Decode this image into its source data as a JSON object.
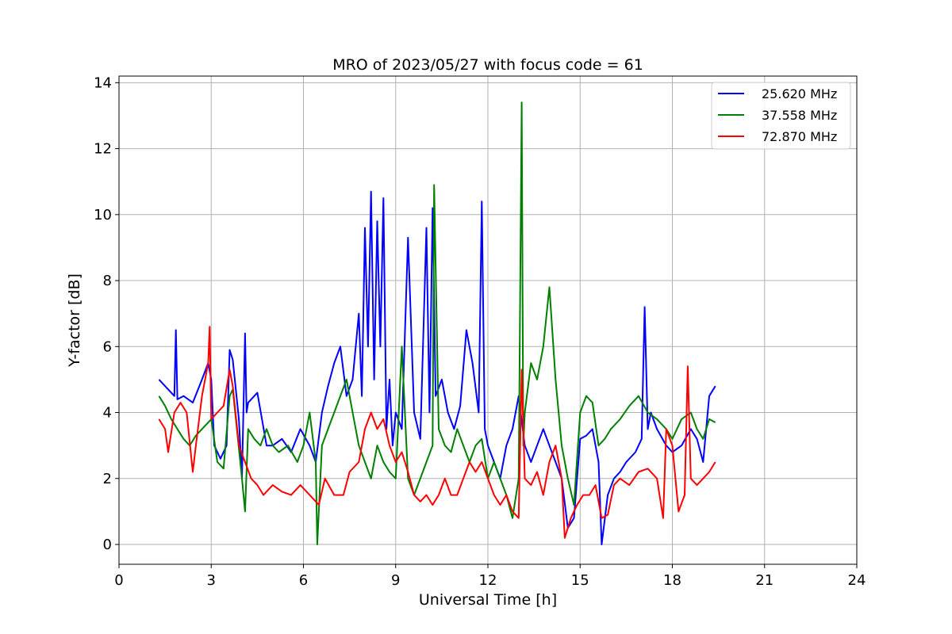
{
  "chart_data": {
    "type": "line",
    "title": "MRO of 2023/05/27 with focus code = 61",
    "xlabel": "Universal Time [h]",
    "ylabel": "Y-factor [dB]",
    "xlim": [
      0,
      24
    ],
    "ylim": [
      -0.6,
      14.2
    ],
    "xticks": [
      0,
      3,
      6,
      9,
      12,
      15,
      18,
      21,
      24
    ],
    "yticks": [
      0,
      2,
      4,
      6,
      8,
      10,
      12,
      14
    ],
    "grid": true,
    "legend_position": "top-right",
    "series": [
      {
        "name": "25.620 MHz",
        "color": "#0000ff",
        "x": [
          1.3,
          1.5,
          1.7,
          1.8,
          1.85,
          1.9,
          2.1,
          2.4,
          2.7,
          2.9,
          3.0,
          3.1,
          3.3,
          3.5,
          3.6,
          3.7,
          3.9,
          4.0,
          4.1,
          4.15,
          4.2,
          4.5,
          4.8,
          5.0,
          5.3,
          5.6,
          5.9,
          6.2,
          6.4,
          6.6,
          6.8,
          7.0,
          7.2,
          7.4,
          7.6,
          7.8,
          7.9,
          8.0,
          8.1,
          8.2,
          8.3,
          8.4,
          8.5,
          8.6,
          8.7,
          8.8,
          8.9,
          9.0,
          9.2,
          9.4,
          9.6,
          9.8,
          10.0,
          10.1,
          10.2,
          10.3,
          10.5,
          10.7,
          10.9,
          11.1,
          11.3,
          11.5,
          11.7,
          11.8,
          11.9,
          12.0,
          12.2,
          12.4,
          12.6,
          12.8,
          13.0,
          13.2,
          13.4,
          13.6,
          13.8,
          14.0,
          14.2,
          14.4,
          14.6,
          14.8,
          15.0,
          15.2,
          15.4,
          15.6,
          15.7,
          15.9,
          16.1,
          16.3,
          16.5,
          16.8,
          17.0,
          17.1,
          17.2,
          17.3,
          17.5,
          17.8,
          18.0,
          18.3,
          18.6,
          18.8,
          19.0,
          19.2,
          19.4
        ],
        "values": [
          5.0,
          4.8,
          4.6,
          4.5,
          6.5,
          4.4,
          4.5,
          4.3,
          5.0,
          5.5,
          5.0,
          3.0,
          2.6,
          3.0,
          5.9,
          5.6,
          3.8,
          2.0,
          6.4,
          4.0,
          4.3,
          4.6,
          3.0,
          3.0,
          3.2,
          2.8,
          3.5,
          3.0,
          2.5,
          4.0,
          4.8,
          5.5,
          6.0,
          4.5,
          5.0,
          7.0,
          4.5,
          9.6,
          6.0,
          10.7,
          5.0,
          9.8,
          6.0,
          10.5,
          3.5,
          5.0,
          3.0,
          4.0,
          3.5,
          9.3,
          4.0,
          3.2,
          9.6,
          4.0,
          10.2,
          4.5,
          5.0,
          4.0,
          3.5,
          4.2,
          6.5,
          5.5,
          4.0,
          10.4,
          3.5,
          3.0,
          2.5,
          2.0,
          3.0,
          3.5,
          4.5,
          3.0,
          2.5,
          3.0,
          3.5,
          3.0,
          2.5,
          2.0,
          0.5,
          0.8,
          3.2,
          3.3,
          3.5,
          2.5,
          0.0,
          1.5,
          2.0,
          2.2,
          2.5,
          2.8,
          3.2,
          7.2,
          3.5,
          4.0,
          3.5,
          3.0,
          2.8,
          3.0,
          3.5,
          3.2,
          2.5,
          4.5,
          4.8
        ]
      },
      {
        "name": "37.558 MHz",
        "color": "#008000",
        "x": [
          1.3,
          1.5,
          1.7,
          1.9,
          2.1,
          2.3,
          2.5,
          2.7,
          3.0,
          3.2,
          3.4,
          3.6,
          3.7,
          3.8,
          4.0,
          4.1,
          4.2,
          4.4,
          4.6,
          4.8,
          5.0,
          5.2,
          5.5,
          5.8,
          6.0,
          6.2,
          6.4,
          6.45,
          6.6,
          6.8,
          7.0,
          7.2,
          7.4,
          7.6,
          7.8,
          8.0,
          8.2,
          8.4,
          8.6,
          8.8,
          9.0,
          9.2,
          9.4,
          9.6,
          9.8,
          10.0,
          10.2,
          10.25,
          10.4,
          10.6,
          10.8,
          11.0,
          11.2,
          11.4,
          11.6,
          11.8,
          12.0,
          12.2,
          12.4,
          12.6,
          12.8,
          13.0,
          13.1,
          13.15,
          13.2,
          13.4,
          13.6,
          13.8,
          14.0,
          14.2,
          14.4,
          14.6,
          14.8,
          15.0,
          15.2,
          15.4,
          15.6,
          15.8,
          16.0,
          16.3,
          16.6,
          16.9,
          17.2,
          17.5,
          17.8,
          18.0,
          18.3,
          18.6,
          18.8,
          19.0,
          19.2,
          19.4
        ],
        "values": [
          4.5,
          4.2,
          3.8,
          3.5,
          3.2,
          3.0,
          3.3,
          3.5,
          3.8,
          2.5,
          2.3,
          4.5,
          4.7,
          3.8,
          2.0,
          1.0,
          3.5,
          3.2,
          3.0,
          3.5,
          3.0,
          2.8,
          3.0,
          2.5,
          3.0,
          4.0,
          2.5,
          0.0,
          3.0,
          3.5,
          4.0,
          4.5,
          5.0,
          4.0,
          3.0,
          2.5,
          2.0,
          3.0,
          2.5,
          2.2,
          2.0,
          6.0,
          2.0,
          1.5,
          2.0,
          2.5,
          3.0,
          10.9,
          3.5,
          3.0,
          2.8,
          3.5,
          3.0,
          2.5,
          3.0,
          3.2,
          2.0,
          2.5,
          2.0,
          1.5,
          0.8,
          2.0,
          13.4,
          3.0,
          4.0,
          5.5,
          5.0,
          6.0,
          7.8,
          5.0,
          3.0,
          2.0,
          1.2,
          4.0,
          4.5,
          4.3,
          3.0,
          3.2,
          3.5,
          3.8,
          4.2,
          4.5,
          4.0,
          3.8,
          3.5,
          3.2,
          3.8,
          4.0,
          3.5,
          3.2,
          3.8,
          3.7
        ]
      },
      {
        "name": "72.870 MHz",
        "color": "#ff0000",
        "x": [
          1.3,
          1.5,
          1.6,
          1.8,
          2.0,
          2.2,
          2.4,
          2.5,
          2.7,
          2.9,
          2.95,
          3.0,
          3.2,
          3.4,
          3.6,
          3.7,
          3.9,
          4.1,
          4.3,
          4.5,
          4.7,
          5.0,
          5.3,
          5.6,
          5.9,
          6.2,
          6.5,
          6.7,
          7.0,
          7.3,
          7.5,
          7.8,
          8.0,
          8.2,
          8.4,
          8.6,
          8.8,
          9.0,
          9.2,
          9.4,
          9.6,
          9.8,
          10.0,
          10.2,
          10.4,
          10.6,
          10.8,
          11.0,
          11.2,
          11.4,
          11.6,
          11.8,
          12.0,
          12.2,
          12.4,
          12.6,
          12.8,
          13.0,
          13.1,
          13.2,
          13.4,
          13.6,
          13.8,
          14.0,
          14.2,
          14.4,
          14.5,
          14.7,
          14.9,
          15.1,
          15.3,
          15.5,
          15.7,
          15.9,
          16.1,
          16.3,
          16.6,
          16.9,
          17.2,
          17.5,
          17.7,
          17.8,
          18.0,
          18.2,
          18.4,
          18.5,
          18.6,
          18.8,
          19.0,
          19.2,
          19.4
        ],
        "values": [
          3.8,
          3.5,
          2.8,
          4.0,
          4.3,
          4.0,
          2.2,
          3.0,
          4.5,
          5.5,
          6.6,
          3.8,
          4.0,
          4.2,
          5.3,
          4.8,
          3.0,
          2.5,
          2.0,
          1.8,
          1.5,
          1.8,
          1.6,
          1.5,
          1.8,
          1.5,
          1.2,
          2.0,
          1.5,
          1.5,
          2.2,
          2.5,
          3.5,
          4.0,
          3.5,
          3.8,
          3.0,
          2.5,
          2.8,
          2.2,
          1.5,
          1.3,
          1.5,
          1.2,
          1.5,
          2.0,
          1.5,
          1.5,
          2.0,
          2.5,
          2.2,
          2.5,
          2.0,
          1.5,
          1.2,
          1.5,
          1.0,
          0.8,
          5.3,
          2.0,
          1.8,
          2.2,
          1.5,
          2.5,
          3.0,
          2.0,
          0.2,
          0.8,
          1.2,
          1.5,
          1.5,
          1.8,
          0.8,
          0.9,
          1.8,
          2.0,
          1.8,
          2.2,
          2.3,
          2.0,
          0.8,
          3.5,
          3.0,
          1.0,
          1.5,
          5.4,
          2.0,
          1.8,
          2.0,
          2.2,
          2.5
        ]
      }
    ]
  }
}
